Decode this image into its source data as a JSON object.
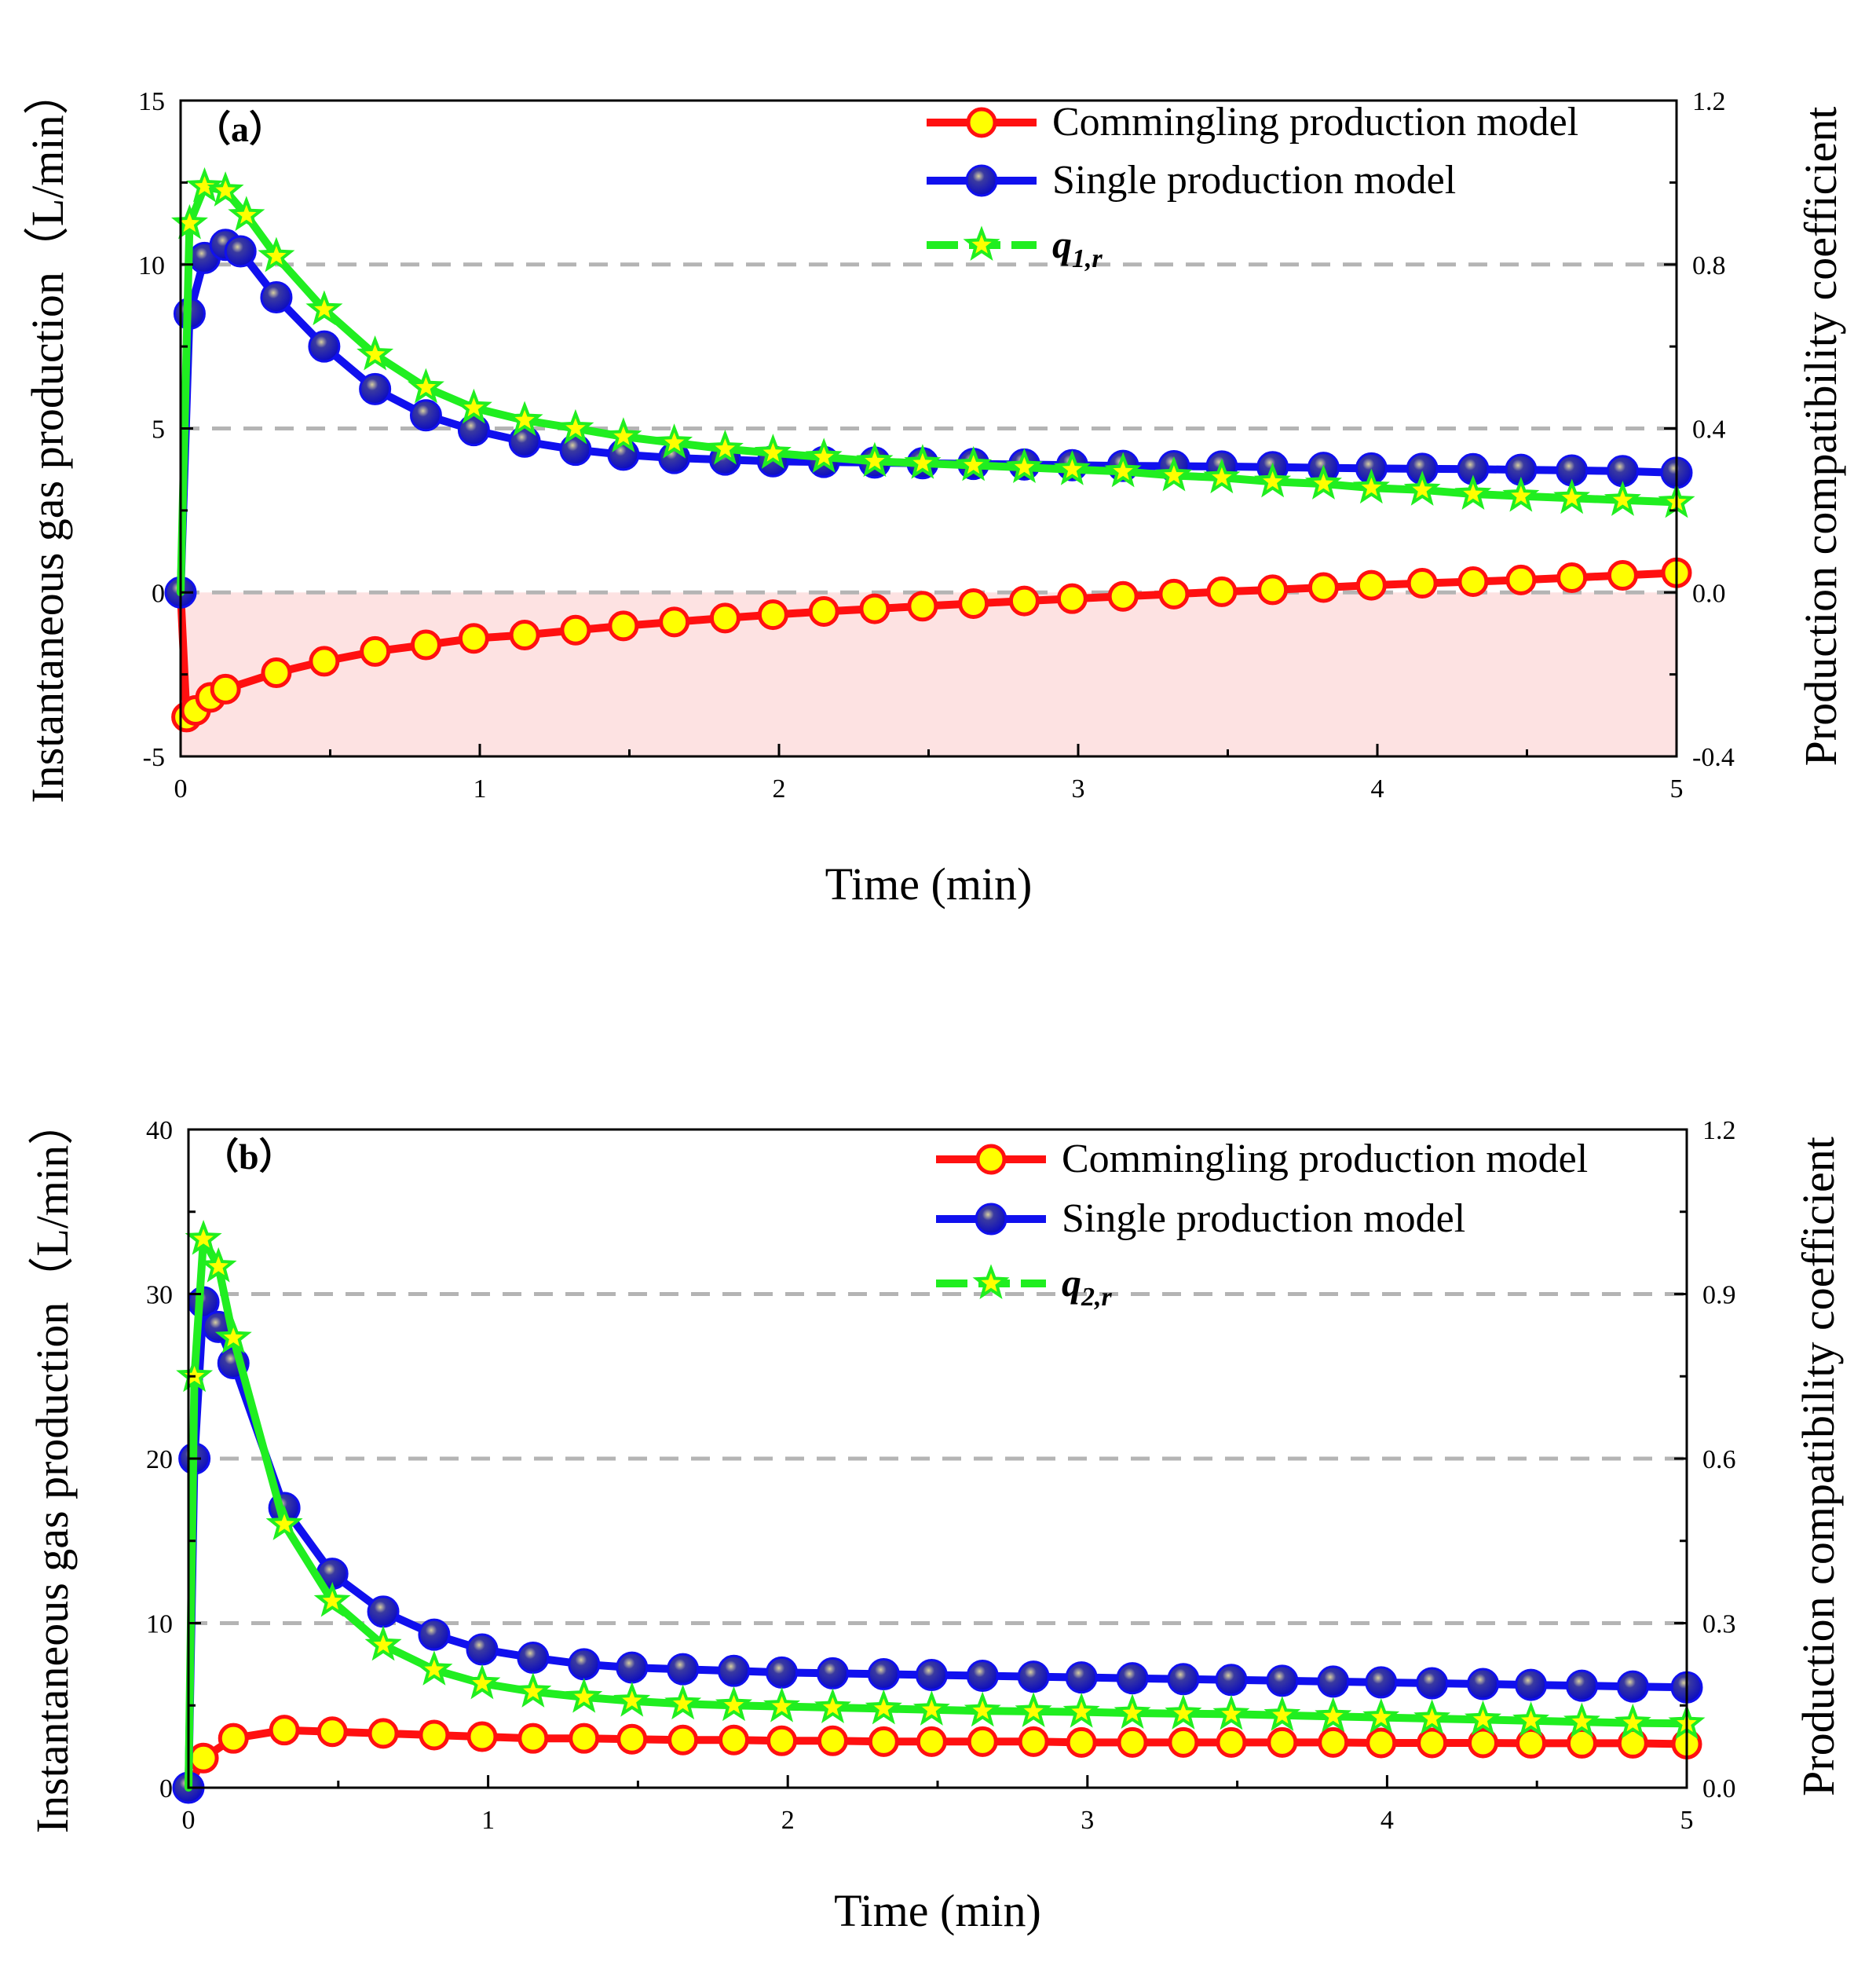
{
  "colors": {
    "commingling": "#ff1010",
    "commingling_fill": "#ffff00",
    "single": "#1010ee",
    "qr": "#20ee20",
    "qr_marker": "#ffff00",
    "grid": "#b4b4b4",
    "negative_band": "#fde2e2",
    "highlight": "#e8e8e8"
  },
  "chart_data": [
    {
      "type": "line",
      "panel_label": "（a）",
      "xlabel": "Time (min)",
      "ylabel_left": "Instantaneous gas production（L/min）",
      "ylabel_right": "Production compatibility coefficient",
      "xlim": [
        0,
        5
      ],
      "ylim_left": [
        -5,
        15
      ],
      "ylim_right": [
        -0.4,
        1.2
      ],
      "x_ticks": [
        "0",
        "1",
        "2",
        "3",
        "4",
        "5"
      ],
      "y_ticks_left": [
        "-5",
        "0",
        "5",
        "10",
        "15"
      ],
      "y_ticks_right": [
        "-0.4",
        "0.0",
        "0.4",
        "0.8",
        "1.2"
      ],
      "dashed_gridlines_left": [
        0,
        5,
        10
      ],
      "negative_region_shaded": true,
      "legend": {
        "position": "top-right",
        "entries": [
          "Commingling production model",
          "Single production model"
        ],
        "symbol_label_main": "q",
        "symbol_label_sub": "1,r"
      },
      "series": [
        {
          "name": "Commingling production model",
          "axis": "left",
          "marker": "circle-yellow",
          "x": [
            0,
            0.02,
            0.05,
            0.1,
            0.15,
            0.32,
            0.48,
            0.65,
            0.82,
            0.98,
            1.15,
            1.32,
            1.48,
            1.65,
            1.82,
            1.98,
            2.15,
            2.32,
            2.48,
            2.65,
            2.82,
            2.98,
            3.15,
            3.32,
            3.48,
            3.65,
            3.82,
            3.98,
            4.15,
            4.32,
            4.48,
            4.65,
            4.82,
            5.0
          ],
          "y": [
            0,
            -3.8,
            -3.6,
            -3.2,
            -2.95,
            -2.45,
            -2.1,
            -1.8,
            -1.6,
            -1.4,
            -1.3,
            -1.15,
            -1.02,
            -0.9,
            -0.78,
            -0.68,
            -0.58,
            -0.5,
            -0.42,
            -0.34,
            -0.26,
            -0.19,
            -0.12,
            -0.05,
            0.02,
            0.08,
            0.15,
            0.22,
            0.28,
            0.33,
            0.38,
            0.45,
            0.52,
            0.6
          ]
        },
        {
          "name": "Single production model",
          "axis": "left",
          "marker": "circle-shaded-blue",
          "x": [
            0,
            0.03,
            0.08,
            0.15,
            0.2,
            0.32,
            0.48,
            0.65,
            0.82,
            0.98,
            1.15,
            1.32,
            1.48,
            1.65,
            1.82,
            1.98,
            2.15,
            2.32,
            2.48,
            2.65,
            2.82,
            2.98,
            3.15,
            3.32,
            3.48,
            3.65,
            3.82,
            3.98,
            4.15,
            4.32,
            4.48,
            4.65,
            4.82,
            5.0
          ],
          "y": [
            0,
            8.5,
            10.2,
            10.6,
            10.4,
            9.0,
            7.5,
            6.2,
            5.4,
            4.95,
            4.6,
            4.35,
            4.2,
            4.1,
            4.05,
            4.0,
            3.98,
            3.96,
            3.94,
            3.92,
            3.9,
            3.88,
            3.86,
            3.85,
            3.84,
            3.82,
            3.8,
            3.78,
            3.77,
            3.76,
            3.74,
            3.72,
            3.7,
            3.65
          ]
        },
        {
          "name": "q1,r",
          "axis": "right",
          "marker": "star",
          "x": [
            0,
            0.03,
            0.08,
            0.15,
            0.22,
            0.32,
            0.48,
            0.65,
            0.82,
            0.98,
            1.15,
            1.32,
            1.48,
            1.65,
            1.82,
            1.98,
            2.15,
            2.32,
            2.48,
            2.65,
            2.82,
            2.98,
            3.15,
            3.32,
            3.48,
            3.65,
            3.82,
            3.98,
            4.15,
            4.32,
            4.48,
            4.65,
            4.82,
            5.0
          ],
          "y": [
            0,
            0.9,
            0.99,
            0.98,
            0.92,
            0.82,
            0.69,
            0.58,
            0.5,
            0.45,
            0.42,
            0.4,
            0.38,
            0.365,
            0.35,
            0.34,
            0.33,
            0.32,
            0.315,
            0.31,
            0.305,
            0.3,
            0.295,
            0.285,
            0.28,
            0.27,
            0.265,
            0.255,
            0.25,
            0.24,
            0.235,
            0.23,
            0.225,
            0.22
          ]
        }
      ]
    },
    {
      "type": "line",
      "panel_label": "（b）",
      "xlabel": "Time (min)",
      "ylabel_left": "Instantaneous gas production（L/min）",
      "ylabel_right": "Production compatibility coefficient",
      "xlim": [
        0,
        5
      ],
      "ylim_left": [
        0,
        40
      ],
      "ylim_right": [
        0.0,
        1.2
      ],
      "x_ticks": [
        "0",
        "1",
        "2",
        "3",
        "4",
        "5"
      ],
      "y_ticks_left": [
        "0",
        "10",
        "20",
        "30",
        "40"
      ],
      "y_ticks_right": [
        "0.0",
        "0.3",
        "0.6",
        "0.9",
        "1.2"
      ],
      "dashed_gridlines_left": [
        10,
        20,
        30
      ],
      "negative_region_shaded": false,
      "legend": {
        "position": "top-right",
        "entries": [
          "Commingling production model",
          "Single production model"
        ],
        "symbol_label_main": "q",
        "symbol_label_sub": "2,r"
      },
      "series": [
        {
          "name": "Commingling production model",
          "axis": "left",
          "marker": "circle-yellow",
          "x": [
            0,
            0.05,
            0.15,
            0.32,
            0.48,
            0.65,
            0.82,
            0.98,
            1.15,
            1.32,
            1.48,
            1.65,
            1.82,
            1.98,
            2.15,
            2.32,
            2.48,
            2.65,
            2.82,
            2.98,
            3.15,
            3.32,
            3.48,
            3.65,
            3.82,
            3.98,
            4.15,
            4.32,
            4.48,
            4.65,
            4.82,
            5.0
          ],
          "y": [
            0,
            1.8,
            3.0,
            3.5,
            3.4,
            3.3,
            3.2,
            3.1,
            3.0,
            3.0,
            2.95,
            2.9,
            2.9,
            2.85,
            2.85,
            2.8,
            2.8,
            2.8,
            2.8,
            2.75,
            2.75,
            2.75,
            2.75,
            2.75,
            2.75,
            2.72,
            2.72,
            2.72,
            2.7,
            2.7,
            2.7,
            2.65
          ]
        },
        {
          "name": "Single production model",
          "axis": "left",
          "marker": "circle-shaded-blue",
          "x": [
            0,
            0.02,
            0.05,
            0.1,
            0.15,
            0.32,
            0.48,
            0.65,
            0.82,
            0.98,
            1.15,
            1.32,
            1.48,
            1.65,
            1.82,
            1.98,
            2.15,
            2.32,
            2.48,
            2.65,
            2.82,
            2.98,
            3.15,
            3.32,
            3.48,
            3.65,
            3.82,
            3.98,
            4.15,
            4.32,
            4.48,
            4.65,
            4.82,
            5.0
          ],
          "y": [
            0,
            20,
            29.5,
            28.0,
            25.8,
            17.0,
            13.0,
            10.7,
            9.3,
            8.4,
            7.9,
            7.5,
            7.3,
            7.2,
            7.1,
            7.0,
            6.95,
            6.9,
            6.85,
            6.8,
            6.75,
            6.7,
            6.65,
            6.6,
            6.55,
            6.5,
            6.45,
            6.4,
            6.35,
            6.3,
            6.25,
            6.2,
            6.15,
            6.1
          ]
        },
        {
          "name": "q2,r",
          "axis": "right",
          "marker": "star",
          "x": [
            0,
            0.02,
            0.05,
            0.1,
            0.15,
            0.32,
            0.48,
            0.65,
            0.82,
            0.98,
            1.15,
            1.32,
            1.48,
            1.65,
            1.82,
            1.98,
            2.15,
            2.32,
            2.48,
            2.65,
            2.82,
            2.98,
            3.15,
            3.32,
            3.48,
            3.65,
            3.82,
            3.98,
            4.15,
            4.32,
            4.48,
            4.65,
            4.82,
            5.0
          ],
          "y": [
            0,
            0.75,
            1.0,
            0.95,
            0.82,
            0.48,
            0.34,
            0.26,
            0.215,
            0.19,
            0.175,
            0.165,
            0.158,
            0.153,
            0.15,
            0.148,
            0.146,
            0.144,
            0.142,
            0.14,
            0.139,
            0.138,
            0.136,
            0.135,
            0.134,
            0.132,
            0.13,
            0.128,
            0.126,
            0.124,
            0.122,
            0.12,
            0.118,
            0.117
          ]
        }
      ]
    }
  ]
}
